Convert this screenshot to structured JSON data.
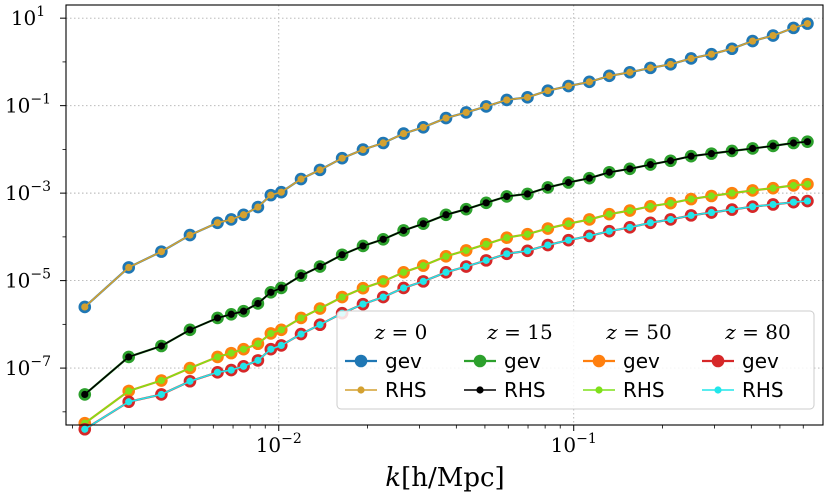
{
  "chart_data": {
    "type": "line",
    "title": "",
    "xlabel": "k[h/Mpc]",
    "ylabel": "",
    "xscale": "log",
    "yscale": "log",
    "xlim": [
      0.0019,
      0.7
    ],
    "ylim": [
      5e-09,
      20
    ],
    "x_ticks": [
      {
        "value": 0.01,
        "label": "10^-2",
        "base": "10",
        "exp": "−2"
      },
      {
        "value": 0.1,
        "label": "10^-1",
        "base": "10",
        "exp": "−1"
      }
    ],
    "y_ticks": [
      {
        "value": 10,
        "label": "10^1",
        "base": "10",
        "exp": "1"
      },
      {
        "value": 0.1,
        "label": "10^-1",
        "base": "10",
        "exp": "−1"
      },
      {
        "value": 0.001,
        "label": "10^-3",
        "base": "10",
        "exp": "−3"
      },
      {
        "value": 1e-05,
        "label": "10^-5",
        "base": "10",
        "exp": "−5"
      },
      {
        "value": 1e-07,
        "label": "10^-7",
        "base": "10",
        "exp": "−7"
      }
    ],
    "grid": true,
    "legend_position": "lower-right",
    "x": [
      0.0022,
      0.0031,
      0.004,
      0.005,
      0.0062,
      0.0069,
      0.0076,
      0.0085,
      0.0094,
      0.0102,
      0.0119,
      0.0138,
      0.0164,
      0.0193,
      0.0226,
      0.0265,
      0.0309,
      0.0369,
      0.0432,
      0.0505,
      0.0593,
      0.0697,
      0.0817,
      0.096,
      0.113,
      0.132,
      0.155,
      0.182,
      0.213,
      0.25,
      0.293,
      0.344,
      0.404,
      0.474,
      0.556,
      0.62
    ],
    "groups": [
      {
        "legend_title": "z = 0",
        "z_var": "z",
        "z_value": "= 0",
        "series": [
          {
            "name": "gev",
            "color": "#1f77b4",
            "marker": "large",
            "values": [
              2.5e-06,
              2e-05,
              4.6e-05,
              0.00011,
              0.00021,
              0.00025,
              0.00032,
              0.00048,
              0.0009,
              0.00105,
              0.0021,
              0.0034,
              0.0063,
              0.0099,
              0.014,
              0.023,
              0.032,
              0.052,
              0.07,
              0.096,
              0.135,
              0.155,
              0.22,
              0.28,
              0.35,
              0.48,
              0.58,
              0.73,
              0.88,
              1.2,
              1.5,
              2.0,
              3.0,
              4.0,
              6.0,
              7.5
            ]
          },
          {
            "name": "RHS",
            "color": "#d4a130",
            "marker": "small",
            "values": [
              2.5e-06,
              2e-05,
              4.6e-05,
              0.00011,
              0.00021,
              0.00025,
              0.00032,
              0.00048,
              0.0009,
              0.00105,
              0.0021,
              0.0034,
              0.0063,
              0.0099,
              0.014,
              0.023,
              0.032,
              0.052,
              0.07,
              0.096,
              0.135,
              0.155,
              0.22,
              0.28,
              0.35,
              0.48,
              0.58,
              0.73,
              0.88,
              1.2,
              1.5,
              2.0,
              3.0,
              4.0,
              6.0,
              7.5
            ]
          }
        ]
      },
      {
        "legend_title": "z = 15",
        "z_var": "z",
        "z_value": "= 15",
        "series": [
          {
            "name": "gev",
            "color": "#2ca02c",
            "marker": "large",
            "values": [
              2.5e-08,
              1.8e-07,
              3.2e-07,
              7.5e-07,
              1.4e-06,
              1.7e-06,
              2e-06,
              3e-06,
              5.4e-06,
              6.8e-06,
              1.3e-05,
              2.1e-05,
              3.9e-05,
              6.2e-05,
              8.8e-05,
              0.00014,
              0.0002,
              0.00032,
              0.00043,
              0.0006,
              0.00084,
              0.00096,
              0.00135,
              0.00175,
              0.0022,
              0.003,
              0.0036,
              0.0045,
              0.0055,
              0.007,
              0.008,
              0.0092,
              0.0105,
              0.012,
              0.014,
              0.015
            ]
          },
          {
            "name": "RHS",
            "color": "#000000",
            "marker": "small",
            "values": [
              2.5e-08,
              1.8e-07,
              3.2e-07,
              7.5e-07,
              1.4e-06,
              1.7e-06,
              2e-06,
              3e-06,
              5.4e-06,
              6.8e-06,
              1.3e-05,
              2.1e-05,
              3.9e-05,
              6.2e-05,
              8.8e-05,
              0.00014,
              0.0002,
              0.00032,
              0.00043,
              0.0006,
              0.00084,
              0.00096,
              0.00135,
              0.00175,
              0.0022,
              0.003,
              0.0036,
              0.0045,
              0.0055,
              0.007,
              0.008,
              0.0092,
              0.0105,
              0.012,
              0.014,
              0.015
            ]
          }
        ]
      },
      {
        "legend_title": "z = 50",
        "z_var": "z",
        "z_value": "= 50",
        "series": [
          {
            "name": "gev",
            "color": "#ff7f0e",
            "marker": "large",
            "values": [
              5.5e-09,
              3e-08,
              5.2e-08,
              1e-07,
              1.8e-07,
              2.2e-07,
              2.7e-07,
              3.6e-07,
              6.2e-07,
              7.5e-07,
              1.4e-06,
              2.3e-06,
              4.2e-06,
              6.7e-06,
              9.6e-06,
              1.55e-05,
              2.2e-05,
              3.6e-05,
              4.9e-05,
              6.8e-05,
              9.6e-05,
              0.000115,
              0.000155,
              0.0002,
              0.00025,
              0.00033,
              0.0004,
              0.0005,
              0.00059,
              0.00073,
              0.00086,
              0.001,
              0.00115,
              0.0013,
              0.0015,
              0.0016
            ]
          },
          {
            "name": "RHS",
            "color": "#7fe01a",
            "marker": "small",
            "values": [
              5.5e-09,
              3e-08,
              5.2e-08,
              1e-07,
              1.8e-07,
              2.2e-07,
              2.7e-07,
              3.6e-07,
              6.2e-07,
              7.5e-07,
              1.4e-06,
              2.3e-06,
              4.2e-06,
              6.7e-06,
              9.6e-06,
              1.55e-05,
              2.2e-05,
              3.6e-05,
              4.9e-05,
              6.8e-05,
              9.6e-05,
              0.000115,
              0.000155,
              0.0002,
              0.00025,
              0.00033,
              0.0004,
              0.0005,
              0.00059,
              0.00073,
              0.00086,
              0.001,
              0.00115,
              0.0013,
              0.0015,
              0.0016
            ]
          }
        ]
      },
      {
        "legend_title": "z = 80",
        "z_var": "z",
        "z_value": "= 80",
        "series": [
          {
            "name": "gev",
            "color": "#d62728",
            "marker": "large",
            "values": [
              4e-09,
              1.7e-08,
              2.5e-08,
              5e-08,
              8e-08,
              9e-08,
              1.1e-07,
              1.5e-07,
              2.7e-07,
              3.3e-07,
              6e-07,
              9.8e-07,
              1.8e-06,
              2.9e-06,
              4.2e-06,
              6.8e-06,
              9.6e-06,
              1.55e-05,
              2.1e-05,
              2.9e-05,
              4.1e-05,
              4.8e-05,
              6.5e-05,
              8.4e-05,
              0.000105,
              0.000135,
              0.000165,
              0.00021,
              0.00025,
              0.00031,
              0.00036,
              0.00042,
              0.00049,
              0.00055,
              0.00062,
              0.00066
            ]
          },
          {
            "name": "RHS",
            "color": "#22e6ea",
            "marker": "small",
            "values": [
              4e-09,
              1.7e-08,
              2.5e-08,
              5e-08,
              8e-08,
              9e-08,
              1.1e-07,
              1.5e-07,
              2.7e-07,
              3.3e-07,
              6e-07,
              9.8e-07,
              1.8e-06,
              2.9e-06,
              4.2e-06,
              6.8e-06,
              9.6e-06,
              1.55e-05,
              2.1e-05,
              2.9e-05,
              4.1e-05,
              4.8e-05,
              6.5e-05,
              8.4e-05,
              0.000105,
              0.000135,
              0.000165,
              0.00021,
              0.00025,
              0.00031,
              0.00036,
              0.00042,
              0.00049,
              0.00055,
              0.00062,
              0.00066
            ]
          }
        ]
      }
    ]
  }
}
